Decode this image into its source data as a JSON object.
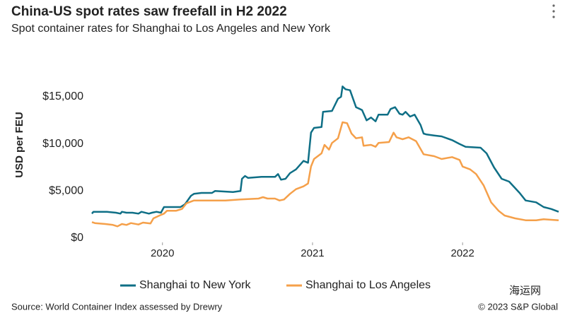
{
  "chart_data": {
    "type": "line",
    "title": "China-US spot rates saw freefall in H2 2022",
    "subtitle": "Spot container rates for Shanghai to Los Angeles and New York",
    "y_label": "USD per FEU",
    "source": "Source: World Container Index assessed by Drewry",
    "copyright": "© 2023 S&P Global",
    "watermark": "海运网",
    "xlim": [
      2019.53,
      2022.64
    ],
    "xticks": [
      2020,
      2021,
      2022
    ],
    "ylim": [
      0,
      18000
    ],
    "yticks": [
      {
        "value": 0,
        "label": "$0"
      },
      {
        "value": 5000,
        "label": "$5,000"
      },
      {
        "value": 10000,
        "label": "$10,000"
      },
      {
        "value": 15000,
        "label": "$15,000"
      }
    ],
    "grid": false,
    "legend": "bottom",
    "series": [
      {
        "name": "Shanghai to New York",
        "color": "#0f6f86",
        "x": [
          2019.53,
          2019.54,
          2019.63,
          2019.69,
          2019.72,
          2019.73,
          2019.76,
          2019.8,
          2019.84,
          2019.86,
          2019.91,
          2019.93,
          2019.96,
          2019.99,
          2020.01,
          2020.07,
          2020.12,
          2020.15,
          2020.19,
          2020.21,
          2020.26,
          2020.33,
          2020.35,
          2020.47,
          2020.52,
          2020.53,
          2020.55,
          2020.57,
          2020.66,
          2020.75,
          2020.77,
          2020.79,
          2020.82,
          2020.85,
          2020.89,
          2020.94,
          2020.97,
          2020.99,
          2021.01,
          2021.06,
          2021.07,
          2021.13,
          2021.17,
          2021.19,
          2021.2,
          2021.22,
          2021.25,
          2021.29,
          2021.33,
          2021.36,
          2021.39,
          2021.42,
          2021.44,
          2021.5,
          2021.52,
          2021.55,
          2021.58,
          2021.6,
          2021.62,
          2021.65,
          2021.68,
          2021.72,
          2021.74,
          2021.76,
          2021.81,
          2021.86,
          2021.93,
          2021.98,
          2022.02,
          2022.12,
          2022.16,
          2022.21,
          2022.26,
          2022.31,
          2022.38,
          2022.42,
          2022.49,
          2022.54,
          2022.59,
          2022.64
        ],
        "values": [
          2600,
          2800,
          2800,
          2700,
          2600,
          2800,
          2700,
          2700,
          2600,
          2800,
          2600,
          2700,
          2800,
          2700,
          3300,
          3300,
          3300,
          3600,
          4500,
          4700,
          4800,
          4800,
          5000,
          4900,
          5000,
          6300,
          6600,
          6400,
          6500,
          6500,
          6800,
          6200,
          6300,
          6900,
          7300,
          8200,
          8000,
          11200,
          11700,
          11800,
          13400,
          13500,
          14800,
          15000,
          16100,
          15800,
          15700,
          13900,
          13600,
          12500,
          12800,
          12400,
          13100,
          13100,
          13700,
          13900,
          13200,
          13100,
          13400,
          12900,
          13100,
          12000,
          11100,
          11000,
          10900,
          10800,
          10400,
          10000,
          9700,
          9600,
          9000,
          7500,
          6300,
          6000,
          4800,
          4000,
          3800,
          3300,
          3100,
          2800
        ]
      },
      {
        "name": "Shanghai to Los Angeles",
        "color": "#f5a04a",
        "x": [
          2019.53,
          2019.55,
          2019.62,
          2019.67,
          2019.7,
          2019.73,
          2019.76,
          2019.79,
          2019.84,
          2019.87,
          2019.92,
          2019.94,
          2019.98,
          2020.01,
          2020.03,
          2020.09,
          2020.13,
          2020.16,
          2020.21,
          2020.33,
          2020.42,
          2020.52,
          2020.64,
          2020.67,
          2020.7,
          2020.75,
          2020.78,
          2020.81,
          2020.85,
          2020.89,
          2020.94,
          2020.97,
          2020.99,
          2021.01,
          2021.06,
          2021.08,
          2021.11,
          2021.13,
          2021.17,
          2021.2,
          2021.23,
          2021.26,
          2021.29,
          2021.33,
          2021.34,
          2021.39,
          2021.42,
          2021.44,
          2021.51,
          2021.54,
          2021.56,
          2021.6,
          2021.64,
          2021.69,
          2021.74,
          2021.81,
          2021.86,
          2021.93,
          2021.98,
          2022.0,
          2022.05,
          2022.09,
          2022.14,
          2022.19,
          2022.24,
          2022.28,
          2022.35,
          2022.42,
          2022.49,
          2022.54,
          2022.64
        ],
        "values": [
          1700,
          1600,
          1500,
          1400,
          1250,
          1500,
          1400,
          1600,
          1450,
          1650,
          1550,
          2100,
          2400,
          2600,
          2900,
          2900,
          3100,
          3700,
          4000,
          4000,
          4000,
          4100,
          4200,
          4350,
          4200,
          4200,
          4000,
          4100,
          4700,
          5200,
          5500,
          5800,
          7600,
          8400,
          9000,
          9900,
          9400,
          10100,
          10600,
          12300,
          12200,
          11100,
          10600,
          10700,
          9800,
          9900,
          9700,
          10100,
          10200,
          11200,
          10700,
          10500,
          10700,
          10300,
          8900,
          8700,
          8400,
          8600,
          8300,
          7600,
          7300,
          6800,
          5600,
          3800,
          2900,
          2400,
          2100,
          1900,
          1900,
          2000,
          1900
        ]
      }
    ]
  }
}
